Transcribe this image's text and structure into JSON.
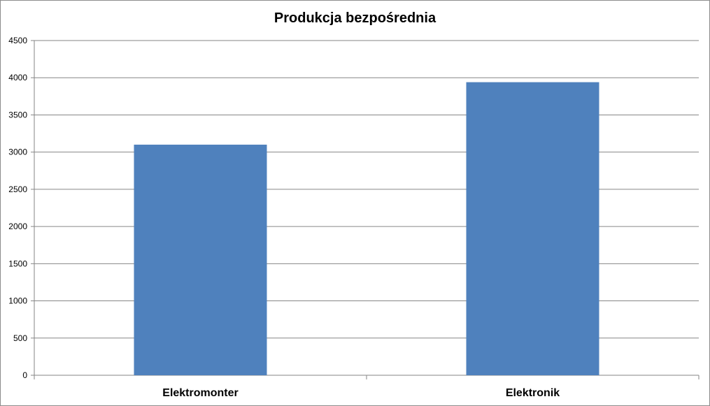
{
  "chart_data": {
    "type": "bar",
    "title": "Produkcja bezpośrednia",
    "categories": [
      "Elektromonter",
      "Elektronik"
    ],
    "values": [
      3100,
      3940
    ],
    "ylim": [
      0,
      4500
    ],
    "yticks": [
      "0",
      "500",
      "1000",
      "1500",
      "2000",
      "2500",
      "3000",
      "3500",
      "4000",
      "4500"
    ],
    "xlabel": "",
    "ylabel": "",
    "grid": true,
    "legend": "none",
    "bar_color": "#4f81bd",
    "grid_color": "#868686"
  }
}
